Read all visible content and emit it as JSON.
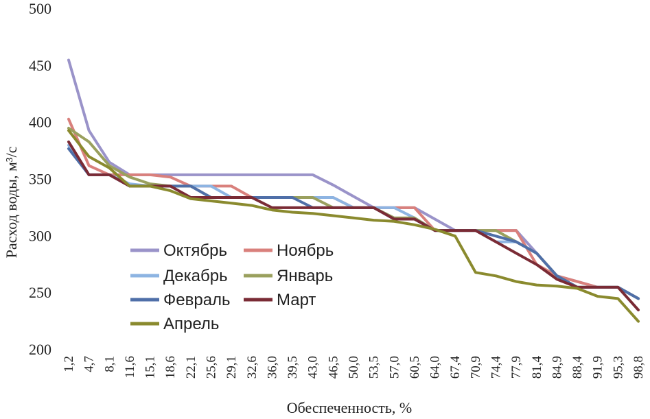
{
  "chart_data": {
    "type": "line",
    "title": "",
    "xlabel": "Обеспеченность, %",
    "ylabel": "Расход воды, м³/с",
    "ylim": [
      200,
      500
    ],
    "yticks": [
      "200",
      "250",
      "300",
      "350",
      "400",
      "450",
      "500"
    ],
    "x": [
      "1,2",
      "4,7",
      "8,1",
      "11,6",
      "15,1",
      "18,6",
      "22,1",
      "25,6",
      "29,1",
      "32,6",
      "36,0",
      "39,5",
      "43,0",
      "46,5",
      "50,0",
      "53,5",
      "57,0",
      "60,5",
      "64,0",
      "67,4",
      "70,9",
      "74,4",
      "77,9",
      "81,4",
      "84,9",
      "88,4",
      "91,9",
      "95,3",
      "98,8"
    ],
    "grid": false,
    "legend_position": "left-bottom",
    "series": [
      {
        "name": "Октябрь",
        "color": "#9a93c9",
        "values": [
          455,
          393,
          365,
          354,
          354,
          354,
          354,
          354,
          354,
          354,
          354,
          354,
          354,
          345,
          335,
          325,
          325,
          325,
          315,
          305,
          305,
          305,
          305,
          285,
          265,
          260,
          255,
          255,
          245
        ]
      },
      {
        "name": "Ноябрь",
        "color": "#d9807c",
        "values": [
          403,
          362,
          354,
          354,
          354,
          352,
          344,
          344,
          344,
          334,
          334,
          334,
          334,
          334,
          325,
          325,
          325,
          325,
          305,
          305,
          305,
          305,
          305,
          275,
          265,
          260,
          255,
          255,
          245
        ]
      },
      {
        "name": "Декабрь",
        "color": "#8db4e2",
        "values": [
          380,
          354,
          354,
          346,
          344,
          344,
          344,
          344,
          334,
          334,
          334,
          334,
          334,
          334,
          325,
          325,
          325,
          316,
          305,
          305,
          305,
          295,
          295,
          285,
          265,
          255,
          255,
          255,
          245
        ]
      },
      {
        "name": "Январь",
        "color": "#9aa05e",
        "values": [
          395,
          383,
          362,
          352,
          346,
          344,
          344,
          334,
          334,
          334,
          334,
          334,
          334,
          325,
          325,
          325,
          316,
          316,
          305,
          305,
          305,
          305,
          295,
          285,
          265,
          255,
          255,
          255,
          245
        ]
      },
      {
        "name": "Февраль",
        "color": "#4f6fa8",
        "values": [
          377,
          354,
          354,
          344,
          344,
          344,
          344,
          334,
          334,
          334,
          334,
          334,
          325,
          325,
          325,
          325,
          315,
          315,
          305,
          305,
          305,
          300,
          295,
          285,
          265,
          255,
          255,
          255,
          245
        ]
      },
      {
        "name": "Март",
        "color": "#7a2b35",
        "values": [
          383,
          354,
          354,
          344,
          344,
          344,
          334,
          334,
          334,
          334,
          325,
          325,
          325,
          325,
          325,
          325,
          315,
          315,
          305,
          305,
          305,
          295,
          285,
          275,
          262,
          255,
          255,
          255,
          235
        ]
      },
      {
        "name": "Апрель",
        "color": "#8a8a2e",
        "values": [
          393,
          370,
          360,
          344,
          344,
          340,
          333,
          331,
          329,
          327,
          323,
          321,
          320,
          318,
          316,
          314,
          313,
          310,
          306,
          300,
          268,
          265,
          260,
          257,
          256,
          254,
          247,
          245,
          225
        ]
      }
    ]
  }
}
